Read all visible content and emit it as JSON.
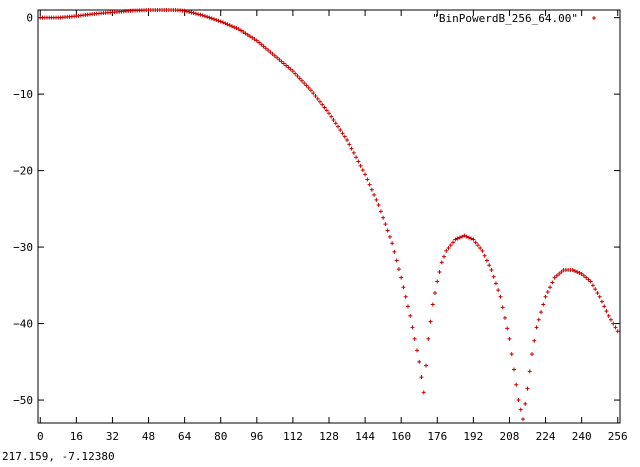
{
  "status_bar": {
    "coordinates": "217.159, -7.12380"
  },
  "chart_data": {
    "type": "scatter",
    "title": "",
    "xlabel": "",
    "ylabel": "",
    "xlim": [
      -1,
      257
    ],
    "ylim": [
      -53,
      1
    ],
    "grid": false,
    "legend_position": "top-right",
    "xticks": [
      "0",
      "16",
      "32",
      "48",
      "64",
      "80",
      "96",
      "112",
      "128",
      "144",
      "160",
      "176",
      "192",
      "208",
      "224",
      "240",
      "256"
    ],
    "yticks": [
      "0",
      "−10",
      "−20",
      "−30",
      "−40",
      "−50"
    ],
    "series": [
      {
        "name": "\"BinPowerdB_256_64.00\"",
        "color": "#cc0000",
        "marker": "plus",
        "x": [
          0,
          8,
          16,
          24,
          32,
          40,
          48,
          56,
          60,
          64,
          72,
          80,
          88,
          96,
          104,
          112,
          120,
          128,
          136,
          144,
          150,
          156,
          160,
          164,
          168,
          170,
          172,
          174,
          176,
          178,
          180,
          184,
          188,
          192,
          196,
          200,
          204,
          208,
          210,
          212,
          214,
          216,
          218,
          220,
          224,
          228,
          232,
          236,
          240,
          244,
          248,
          252,
          256
        ],
        "y": [
          0,
          0,
          0.2,
          0.5,
          0.7,
          0.9,
          1,
          1,
          1,
          0.9,
          0.3,
          -0.5,
          -1.5,
          -3,
          -5,
          -7,
          -9.5,
          -12.5,
          -16,
          -20.5,
          -24.5,
          -29.5,
          -34,
          -39,
          -45,
          -49,
          -42,
          -37.5,
          -34.5,
          -32,
          -30.5,
          -29,
          -28.5,
          -29,
          -30.5,
          -33,
          -36.5,
          -42,
          -46,
          -50,
          -52.5,
          -48.5,
          -44,
          -40.5,
          -36.5,
          -34,
          -33,
          -33,
          -33.5,
          -34.5,
          -36.5,
          -39,
          -41
        ]
      }
    ]
  }
}
